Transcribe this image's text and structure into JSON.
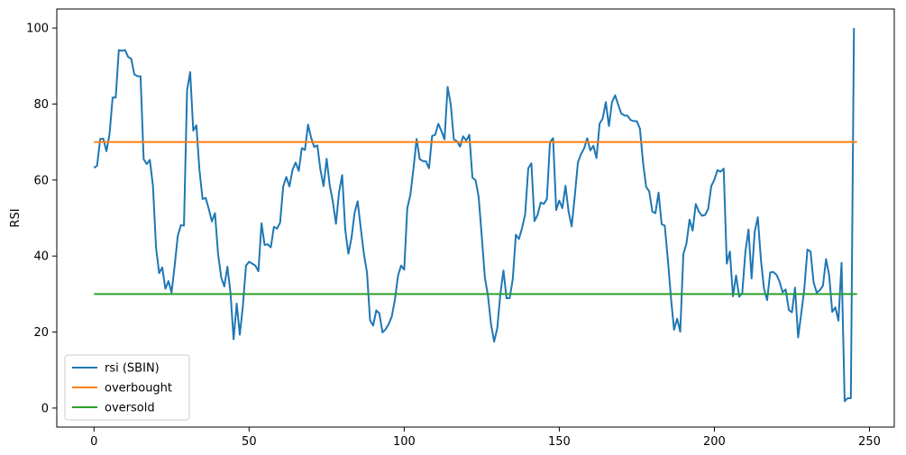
{
  "chart_data": {
    "type": "line",
    "title": "",
    "xlabel": "",
    "ylabel": "RSI",
    "xlim": [
      -12,
      258
    ],
    "ylim": [
      -5,
      105
    ],
    "xticks": [
      0,
      50,
      100,
      150,
      200,
      250
    ],
    "yticks": [
      0,
      20,
      40,
      60,
      80,
      100
    ],
    "grid": false,
    "legend_position": "lower-left",
    "series": [
      {
        "name": "rsi (SBIN)",
        "color": "#1f77b4",
        "x": [
          0,
          1,
          2,
          3,
          4,
          5,
          6,
          7,
          8,
          9,
          10,
          11,
          12,
          13,
          14,
          15,
          16,
          17,
          18,
          19,
          20,
          21,
          22,
          23,
          24,
          25,
          26,
          27,
          28,
          29,
          30,
          31,
          32,
          33,
          34,
          35,
          36,
          37,
          38,
          39,
          40,
          41,
          42,
          43,
          44,
          45,
          46,
          47,
          48,
          49,
          50,
          51,
          52,
          53,
          54,
          55,
          56,
          57,
          58,
          59,
          60,
          61,
          62,
          63,
          64,
          65,
          66,
          67,
          68,
          69,
          70,
          71,
          72,
          73,
          74,
          75,
          76,
          77,
          78,
          79,
          80,
          81,
          82,
          83,
          84,
          85,
          86,
          87,
          88,
          89,
          90,
          91,
          92,
          93,
          94,
          95,
          96,
          97,
          98,
          99,
          100,
          101,
          102,
          103,
          104,
          105,
          106,
          107,
          108,
          109,
          110,
          111,
          112,
          113,
          114,
          115,
          116,
          117,
          118,
          119,
          120,
          121,
          122,
          123,
          124,
          125,
          126,
          127,
          128,
          129,
          130,
          131,
          132,
          133,
          134,
          135,
          136,
          137,
          138,
          139,
          140,
          141,
          142,
          143,
          144,
          145,
          146,
          147,
          148,
          149,
          150,
          151,
          152,
          153,
          154,
          155,
          156,
          157,
          158,
          159,
          160,
          161,
          162,
          163,
          164,
          165,
          166,
          167,
          168,
          169,
          170,
          171,
          172,
          173,
          174,
          175,
          176,
          177,
          178,
          179,
          180,
          181,
          182,
          183,
          184,
          185,
          186,
          187,
          188,
          189,
          190,
          191,
          192,
          193,
          194,
          195,
          196,
          197,
          198,
          199,
          200,
          201,
          202,
          203,
          204,
          205,
          206,
          207,
          208,
          209,
          210,
          211,
          212,
          213,
          214,
          215,
          216,
          217,
          218,
          219,
          220,
          221,
          222,
          223,
          224,
          225,
          226,
          227,
          228,
          229,
          230,
          231,
          232,
          233,
          234,
          235,
          236,
          237,
          238,
          239,
          240,
          241,
          242,
          243,
          244,
          245
        ],
        "y": [
          63.2,
          63.8,
          70.8,
          70.9,
          67.6,
          72.0,
          81.7,
          81.7,
          94.2,
          94.0,
          94.2,
          92.4,
          91.9,
          87.8,
          87.3,
          87.3,
          65.5,
          64.2,
          65.3,
          58.5,
          42.2,
          35.5,
          37.0,
          31.4,
          33.4,
          30.4,
          37.4,
          45.3,
          48.1,
          48.0,
          83.6,
          88.4,
          73.0,
          74.4,
          62.6,
          55.0,
          55.3,
          52.4,
          49.1,
          51.3,
          40.5,
          34.4,
          32.0,
          37.2,
          30.3,
          18.1,
          27.5,
          19.3,
          26.9,
          37.5,
          38.5,
          38.0,
          37.5,
          36.0,
          48.6,
          42.9,
          43.1,
          42.3,
          47.7,
          47.2,
          48.8,
          58.3,
          60.8,
          58.3,
          62.7,
          64.6,
          62.4,
          68.4,
          67.9,
          74.6,
          71.1,
          68.7,
          69.1,
          62.7,
          58.4,
          65.6,
          58.6,
          54.3,
          48.5,
          56.8,
          61.3,
          46.9,
          40.6,
          44.7,
          51.3,
          54.4,
          47.3,
          40.6,
          35.7,
          23.1,
          21.7,
          25.7,
          24.9,
          19.9,
          20.7,
          22.1,
          24.1,
          28.5,
          34.8,
          37.5,
          36.4,
          52.6,
          56.1,
          63.1,
          70.8,
          65.5,
          65.0,
          64.9,
          63.1,
          71.6,
          71.9,
          74.8,
          72.9,
          70.7,
          84.5,
          80.0,
          70.7,
          70.2,
          68.8,
          71.5,
          70.4,
          71.9,
          60.6,
          60.0,
          55.6,
          45.3,
          34.4,
          29.6,
          22.0,
          17.5,
          21.0,
          30.0,
          36.2,
          28.9,
          28.9,
          33.9,
          45.6,
          44.5,
          47.4,
          51.0,
          63.1,
          64.4,
          49.2,
          50.8,
          54.1,
          53.7,
          55.0,
          70.0,
          71.0,
          52.1,
          54.6,
          52.6,
          58.5,
          51.7,
          47.8,
          55.8,
          64.6,
          66.8,
          68.3,
          71.0,
          67.8,
          69.0,
          65.8,
          74.8,
          76.2,
          80.5,
          74.2,
          80.5,
          82.3,
          79.8,
          77.5,
          77.0,
          76.9,
          75.8,
          75.5,
          75.5,
          73.5,
          64.6,
          58.2,
          57.0,
          51.7,
          51.3,
          56.7,
          48.4,
          48.0,
          39.1,
          29.0,
          20.6,
          23.5,
          20.1,
          40.5,
          43.3,
          49.6,
          46.7,
          53.7,
          51.7,
          50.6,
          50.8,
          52.4,
          58.4,
          60.1,
          62.6,
          62.2,
          63.0,
          38.0,
          41.2,
          29.4,
          34.9,
          29.3,
          30.3,
          41.1,
          47.0,
          34.1,
          46.4,
          50.2,
          39.1,
          31.4,
          28.4,
          35.7,
          35.8,
          35.1,
          33.3,
          30.5,
          31.2,
          25.8,
          25.2,
          31.7,
          18.6,
          24.8,
          31.4,
          41.7,
          41.2,
          33.0,
          30.4,
          31.0,
          32.2,
          39.2,
          35.0,
          25.3,
          26.5,
          23.0,
          38.2,
          1.8,
          2.6,
          2.6,
          100.0
        ]
      },
      {
        "name": "overbought",
        "color": "#ff7f0e",
        "x": [
          0,
          246
        ],
        "y": [
          70,
          70
        ]
      },
      {
        "name": "oversold",
        "color": "#2ca02c",
        "x": [
          0,
          246
        ],
        "y": [
          30,
          30
        ]
      }
    ]
  }
}
